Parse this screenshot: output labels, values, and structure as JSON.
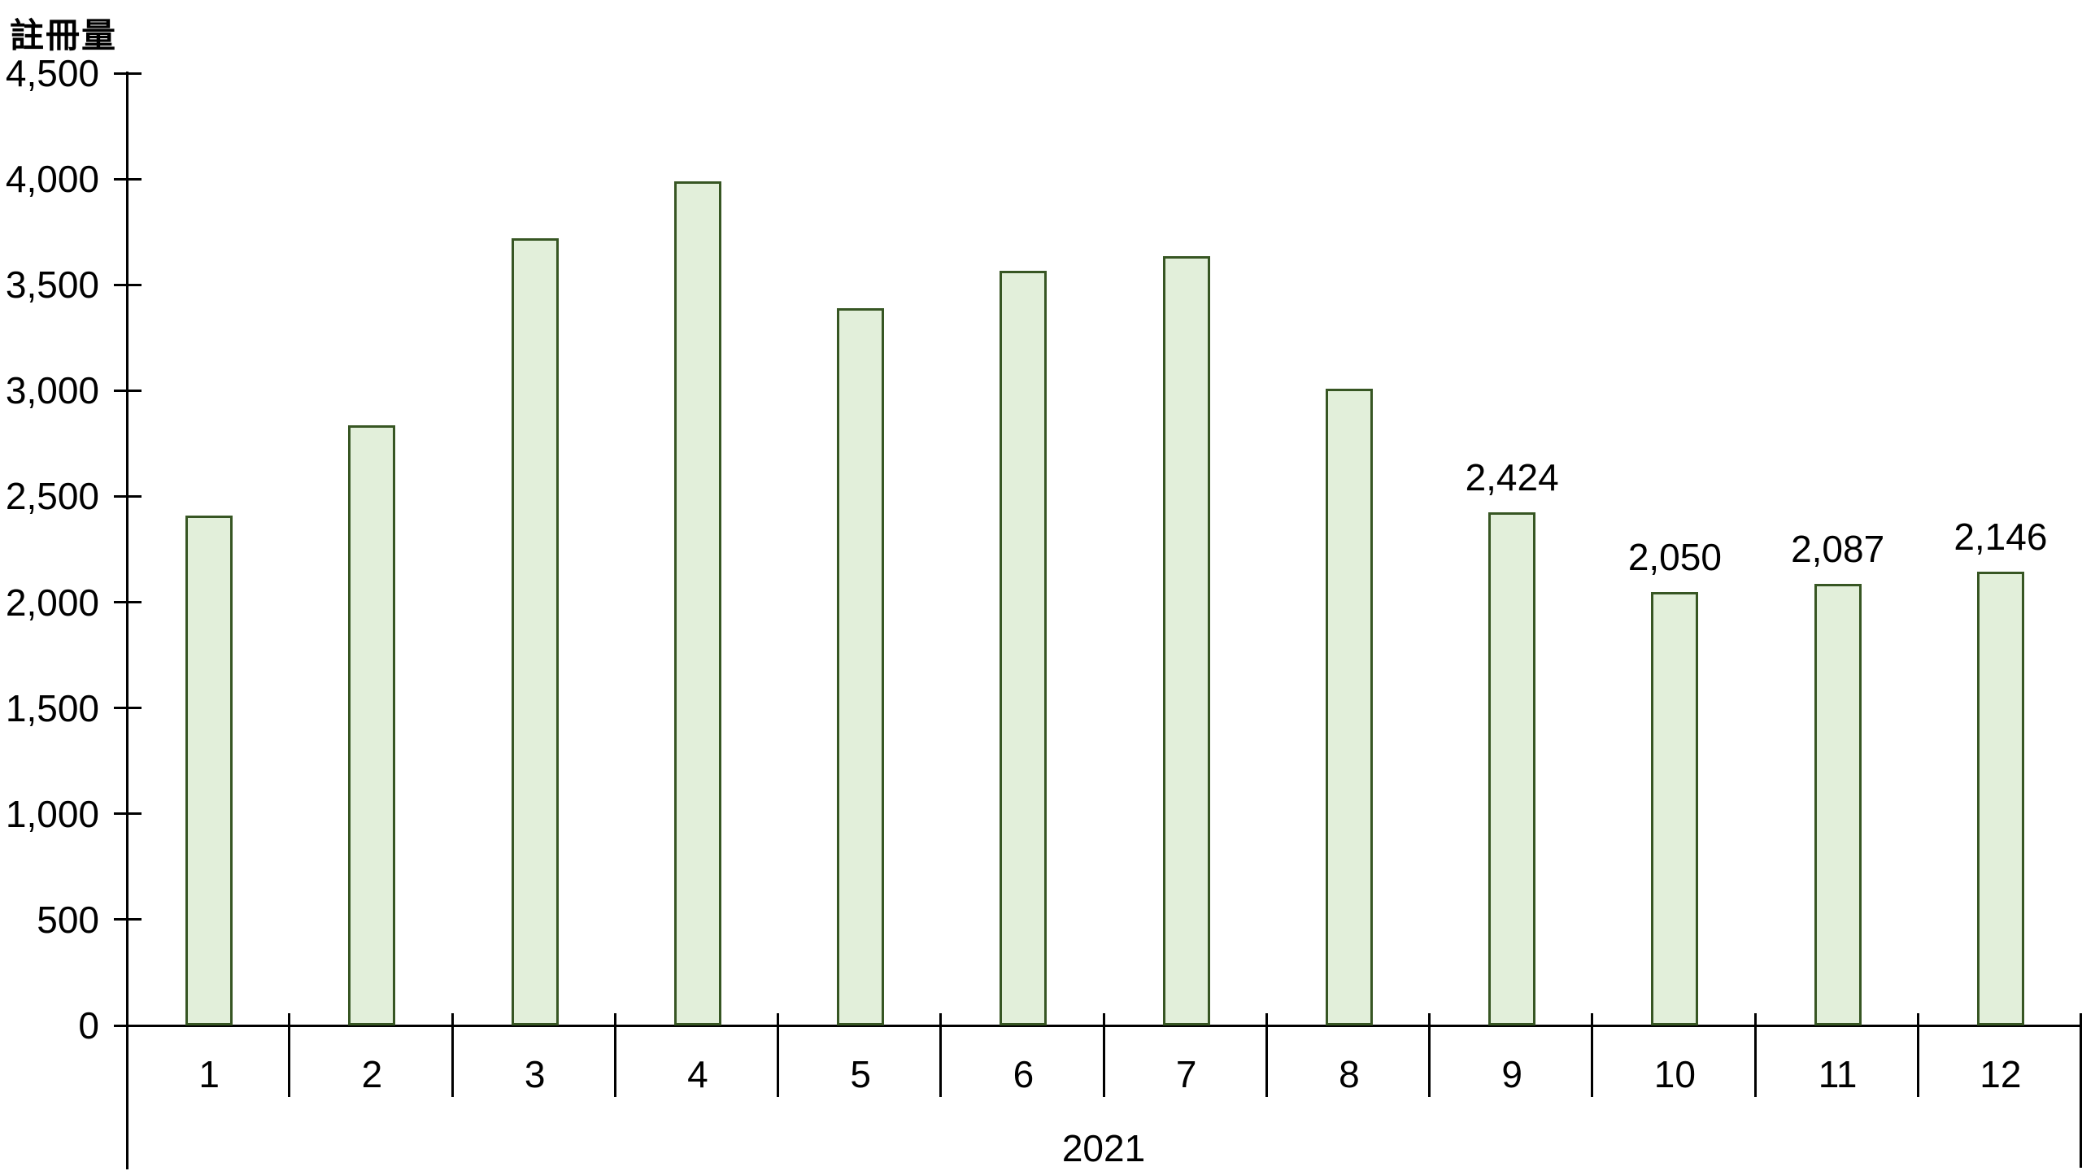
{
  "chart_data": {
    "type": "bar",
    "title": "註冊量",
    "year_label": "2021",
    "categories": [
      "1",
      "2",
      "3",
      "4",
      "5",
      "6",
      "7",
      "8",
      "9",
      "10",
      "11",
      "12"
    ],
    "values": [
      2410,
      2835,
      3720,
      3990,
      3390,
      3565,
      3635,
      3010,
      2424,
      2050,
      2087,
      2146
    ],
    "data_labels": [
      "",
      "",
      "",
      "",
      "",
      "",
      "",
      "",
      "2,424",
      "2,050",
      "2,087",
      "2,146"
    ],
    "ylim": [
      0,
      4500
    ],
    "y_ticks": [
      0,
      500,
      1000,
      1500,
      2000,
      2500,
      3000,
      3500,
      4000,
      4500
    ],
    "y_tick_labels": [
      "0",
      "500",
      "1,000",
      "1,500",
      "2,000",
      "2,500",
      "3,000",
      "3,500",
      "4,000",
      "4,500"
    ],
    "grid": false,
    "legend_position": "none",
    "axis_label_position": "y-title-top-left",
    "colors": {
      "bar_fill": "#e2efda",
      "bar_border": "#375623",
      "axis": "#000000",
      "text": "#000000"
    }
  }
}
